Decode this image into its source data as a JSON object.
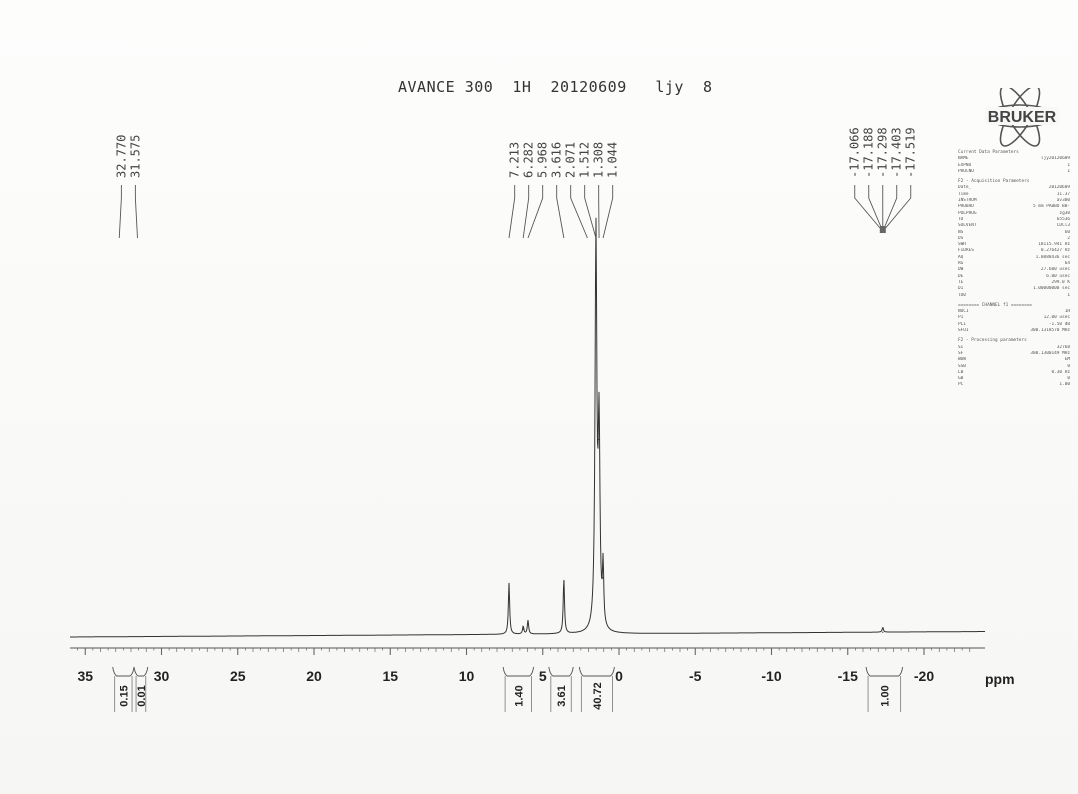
{
  "header": {
    "title": "AVANCE 300  1H  20120609   ljy  8"
  },
  "logo": {
    "text": "BRUKER"
  },
  "params": [
    {
      "title": "Current Data Parameters",
      "rows": [
        [
          "NAME",
          "ljy20120609"
        ],
        [
          "EXPNO",
          "1"
        ],
        [
          "PROCNO",
          "1"
        ]
      ]
    },
    {
      "title": "F2 - Acquisition Parameters",
      "rows": [
        [
          "Date_",
          "20120609"
        ],
        [
          "Time",
          "11.37"
        ],
        [
          "INSTRUM",
          "av300"
        ],
        [
          "PROBHD",
          "5 mm PABBO BB-"
        ],
        [
          "PULPROG",
          "zg30"
        ],
        [
          "TD",
          "65536"
        ],
        [
          "SOLVENT",
          "CDCl3"
        ],
        [
          "NS",
          "60"
        ],
        [
          "DS",
          "2"
        ],
        [
          "SWH",
          "18115.941 Hz"
        ],
        [
          "FIDRES",
          "0.276427 Hz"
        ],
        [
          "AQ",
          "1.8088436 sec"
        ],
        [
          "RG",
          "64"
        ],
        [
          "DW",
          "27.600 usec"
        ],
        [
          "DE",
          "6.00 usec"
        ],
        [
          "TE",
          "299.0 K"
        ],
        [
          "D1",
          "1.00000000 sec"
        ],
        [
          "TD0",
          "1"
        ]
      ]
    },
    {
      "title": "======== CHANNEL f1 ========",
      "rows": [
        [
          "NUC1",
          "1H"
        ],
        [
          "P1",
          "12.00 usec"
        ],
        [
          "PL1",
          "-1.50 dB"
        ],
        [
          "SFO1",
          "300.1318570 MHz"
        ]
      ]
    },
    {
      "title": "F2 - Processing parameters",
      "rows": [
        [
          "SI",
          "32768"
        ],
        [
          "SF",
          "300.1300149 MHz"
        ],
        [
          "WDW",
          "EM"
        ],
        [
          "SSB",
          "0"
        ],
        [
          "LB",
          "0.30 Hz"
        ],
        [
          "GB",
          "0"
        ],
        [
          "PC",
          "1.00"
        ]
      ]
    }
  ],
  "chart_data": {
    "type": "line",
    "title": "AVANCE 300  1H  20120609   ljy  8",
    "xlabel": "ppm",
    "xlim": [
      36,
      -24
    ],
    "x_reversed": true,
    "grid": false,
    "ticks": [
      35,
      30,
      25,
      20,
      15,
      10,
      5,
      0,
      -5,
      -10,
      -15,
      -20
    ],
    "tick_labels": [
      "35",
      "30",
      "25",
      "20",
      "15",
      "10",
      "5",
      "0",
      "-5",
      "-10",
      "-15",
      "-20"
    ],
    "series": [
      {
        "peaks": [
          {
            "shift": 7.213,
            "height": 0.13
          },
          {
            "shift": 6.282,
            "height": 0.02
          },
          {
            "shift": 5.968,
            "height": 0.035
          },
          {
            "shift": 3.616,
            "height": 0.14
          },
          {
            "shift": 1.512,
            "height": 1.0
          },
          {
            "shift": 1.308,
            "height": 0.5
          },
          {
            "shift": 1.044,
            "height": 0.15
          },
          {
            "shift": -17.298,
            "height": 0.012
          }
        ]
      }
    ],
    "peak_groups": [
      {
        "labels": [
          "32.770",
          "31.575"
        ]
      },
      {
        "labels": [
          "7.213",
          "6.282",
          "5.968",
          "3.616",
          "2.071",
          "1.512",
          "1.308",
          "1.044"
        ]
      },
      {
        "labels": [
          "-17.066",
          "-17.188",
          "-17.298",
          "-17.403",
          "-17.519"
        ]
      }
    ],
    "integrals": [
      {
        "from": 33.2,
        "to": 31.8,
        "value": "0.15"
      },
      {
        "from": 31.8,
        "to": 30.9,
        "value": "0.01"
      },
      {
        "from": 7.6,
        "to": 5.6,
        "value": "1.40"
      },
      {
        "from": 4.6,
        "to": 3.0,
        "value": "3.61"
      },
      {
        "from": 2.6,
        "to": 0.3,
        "value": "40.72"
      },
      {
        "from": -16.2,
        "to": -18.6,
        "value": "1.00"
      }
    ]
  }
}
